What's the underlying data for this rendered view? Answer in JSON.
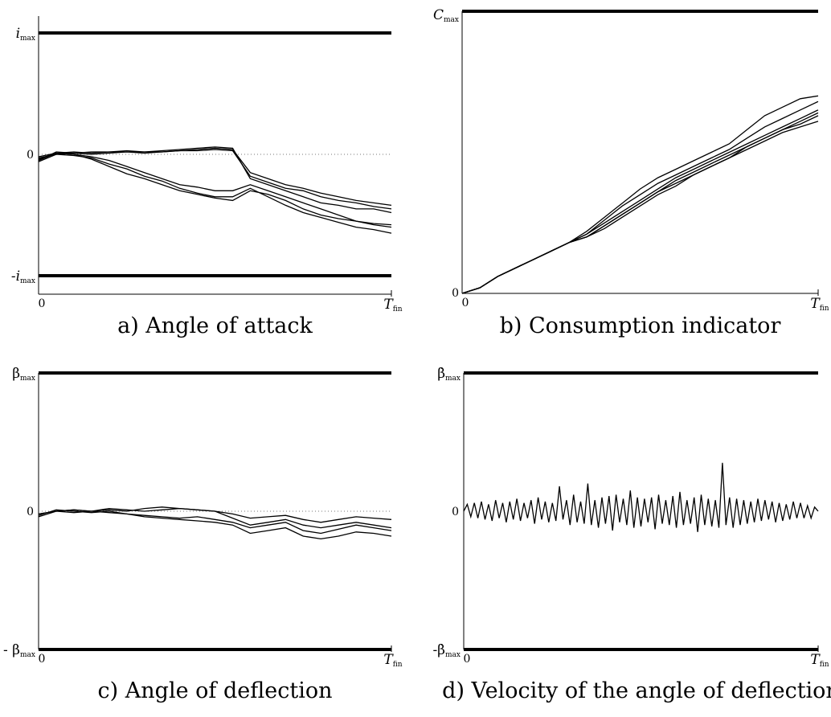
{
  "chart_data": [
    {
      "id": "a",
      "type": "line",
      "caption": "a) Angle of attack",
      "xlabel": "",
      "ylabel": "",
      "x_ticks": [
        "0",
        "T_fin"
      ],
      "y_ticks": [
        "i_max",
        "0",
        "-i_max"
      ],
      "ylim": [
        -1,
        1
      ],
      "xlim": [
        0,
        1
      ],
      "bounds": [
        1,
        -1
      ],
      "zero_line": true,
      "x": [
        0,
        0.05,
        0.1,
        0.15,
        0.2,
        0.25,
        0.3,
        0.35,
        0.4,
        0.45,
        0.5,
        0.55,
        0.6,
        0.65,
        0.7,
        0.75,
        0.8,
        0.85,
        0.9,
        0.95,
        1.0
      ],
      "series": [
        {
          "values": [
            -0.05,
            0.02,
            0.01,
            0.02,
            0.02,
            0.03,
            0.02,
            0.03,
            0.04,
            0.05,
            0.06,
            0.05,
            -0.2,
            -0.25,
            -0.3,
            -0.35,
            -0.4,
            -0.42,
            -0.45,
            -0.45,
            -0.48
          ]
        },
        {
          "values": [
            -0.04,
            0.01,
            0.0,
            -0.02,
            -0.05,
            -0.1,
            -0.15,
            -0.2,
            -0.25,
            -0.27,
            -0.3,
            -0.3,
            -0.25,
            -0.3,
            -0.35,
            -0.4,
            -0.45,
            -0.5,
            -0.55,
            -0.58,
            -0.6
          ]
        },
        {
          "values": [
            -0.03,
            0.0,
            -0.01,
            -0.03,
            -0.08,
            -0.12,
            -0.18,
            -0.22,
            -0.28,
            -0.32,
            -0.35,
            -0.35,
            -0.28,
            -0.35,
            -0.42,
            -0.48,
            -0.52,
            -0.56,
            -0.6,
            -0.62,
            -0.65
          ]
        },
        {
          "values": [
            -0.02,
            0.01,
            0.02,
            0.01,
            0.02,
            0.02,
            0.02,
            0.02,
            0.03,
            0.04,
            0.05,
            0.04,
            -0.15,
            -0.2,
            -0.25,
            -0.28,
            -0.32,
            -0.35,
            -0.38,
            -0.4,
            -0.42
          ]
        },
        {
          "values": [
            -0.06,
            0.0,
            0.01,
            0.0,
            0.01,
            0.02,
            0.01,
            0.02,
            0.03,
            0.03,
            0.04,
            0.03,
            -0.18,
            -0.23,
            -0.28,
            -0.3,
            -0.35,
            -0.38,
            -0.4,
            -0.43,
            -0.45
          ]
        },
        {
          "values": [
            -0.05,
            0.01,
            0.0,
            -0.04,
            -0.1,
            -0.16,
            -0.2,
            -0.25,
            -0.3,
            -0.33,
            -0.36,
            -0.38,
            -0.3,
            -0.33,
            -0.38,
            -0.45,
            -0.5,
            -0.53,
            -0.55,
            -0.57,
            -0.58
          ]
        }
      ]
    },
    {
      "id": "b",
      "type": "line",
      "caption": "b) Consumption indicator",
      "xlabel": "",
      "ylabel": "",
      "x_ticks": [
        "0",
        "T_fin"
      ],
      "y_ticks": [
        "C_max",
        "0"
      ],
      "ylim": [
        0,
        1
      ],
      "xlim": [
        0,
        1
      ],
      "bounds": [
        1
      ],
      "zero_line": false,
      "x": [
        0,
        0.05,
        0.1,
        0.15,
        0.2,
        0.25,
        0.3,
        0.35,
        0.4,
        0.45,
        0.5,
        0.55,
        0.6,
        0.65,
        0.7,
        0.75,
        0.8,
        0.85,
        0.9,
        0.95,
        1.0
      ],
      "series": [
        {
          "values": [
            0,
            0.02,
            0.06,
            0.09,
            0.12,
            0.15,
            0.18,
            0.2,
            0.24,
            0.28,
            0.32,
            0.36,
            0.4,
            0.43,
            0.46,
            0.49,
            0.52,
            0.55,
            0.58,
            0.6,
            0.63
          ]
        },
        {
          "values": [
            0,
            0.02,
            0.06,
            0.09,
            0.12,
            0.15,
            0.18,
            0.21,
            0.26,
            0.31,
            0.35,
            0.39,
            0.42,
            0.45,
            0.48,
            0.51,
            0.55,
            0.59,
            0.62,
            0.65,
            0.68
          ]
        },
        {
          "values": [
            0,
            0.02,
            0.06,
            0.09,
            0.12,
            0.15,
            0.18,
            0.2,
            0.23,
            0.27,
            0.31,
            0.35,
            0.38,
            0.42,
            0.45,
            0.48,
            0.51,
            0.54,
            0.57,
            0.59,
            0.61
          ]
        },
        {
          "values": [
            0,
            0.02,
            0.06,
            0.09,
            0.12,
            0.15,
            0.18,
            0.21,
            0.25,
            0.29,
            0.33,
            0.37,
            0.41,
            0.44,
            0.47,
            0.5,
            0.53,
            0.56,
            0.59,
            0.62,
            0.65
          ]
        },
        {
          "values": [
            0,
            0.02,
            0.06,
            0.09,
            0.12,
            0.15,
            0.18,
            0.2,
            0.24,
            0.28,
            0.32,
            0.36,
            0.39,
            0.42,
            0.45,
            0.48,
            0.52,
            0.55,
            0.58,
            0.61,
            0.64
          ]
        },
        {
          "values": [
            0,
            0.02,
            0.06,
            0.09,
            0.12,
            0.15,
            0.18,
            0.22,
            0.27,
            0.32,
            0.37,
            0.41,
            0.44,
            0.47,
            0.5,
            0.53,
            0.58,
            0.63,
            0.66,
            0.69,
            0.7
          ]
        }
      ]
    },
    {
      "id": "c",
      "type": "line",
      "caption": "c) Angle of deflection",
      "xlabel": "",
      "ylabel": "",
      "x_ticks": [
        "0",
        "T_fin"
      ],
      "y_ticks": [
        "β_max",
        "0",
        "- β_max"
      ],
      "ylim": [
        -1,
        1
      ],
      "xlim": [
        0,
        1
      ],
      "bounds": [
        1,
        -1
      ],
      "zero_line": true,
      "x": [
        0,
        0.05,
        0.1,
        0.15,
        0.2,
        0.25,
        0.3,
        0.35,
        0.4,
        0.45,
        0.5,
        0.55,
        0.6,
        0.65,
        0.7,
        0.75,
        0.8,
        0.85,
        0.9,
        0.95,
        1.0
      ],
      "series": [
        {
          "values": [
            -0.02,
            0.0,
            0.01,
            0.0,
            0.02,
            0.01,
            0.0,
            0.01,
            0.02,
            0.01,
            0.0,
            -0.05,
            -0.1,
            -0.08,
            -0.06,
            -0.1,
            -0.12,
            -0.1,
            -0.08,
            -0.1,
            -0.12
          ]
        },
        {
          "values": [
            -0.03,
            0.01,
            0.0,
            -0.01,
            0.0,
            -0.02,
            -0.03,
            -0.04,
            -0.05,
            -0.04,
            -0.06,
            -0.08,
            -0.12,
            -0.1,
            -0.08,
            -0.14,
            -0.16,
            -0.13,
            -0.1,
            -0.12,
            -0.14
          ]
        },
        {
          "values": [
            -0.02,
            0.0,
            -0.01,
            0.0,
            0.01,
            0.0,
            0.02,
            0.03,
            0.02,
            0.01,
            0.0,
            -0.02,
            -0.05,
            -0.04,
            -0.03,
            -0.06,
            -0.08,
            -0.06,
            -0.04,
            -0.05,
            -0.06
          ]
        },
        {
          "values": [
            -0.04,
            0.0,
            0.01,
            0.0,
            -0.01,
            -0.02,
            -0.04,
            -0.05,
            -0.06,
            -0.07,
            -0.08,
            -0.1,
            -0.16,
            -0.14,
            -0.12,
            -0.18,
            -0.2,
            -0.18,
            -0.15,
            -0.16,
            -0.18
          ]
        }
      ]
    },
    {
      "id": "d",
      "type": "line",
      "caption": "d) Velocity of the angle of deflection",
      "xlabel": "",
      "ylabel": "",
      "x_ticks": [
        "0",
        "T_fin"
      ],
      "y_ticks": [
        "β̇_max",
        "0",
        "-β̇_max"
      ],
      "ylim": [
        -1,
        1
      ],
      "xlim": [
        0,
        1
      ],
      "bounds": [
        1,
        -1
      ],
      "zero_line": false,
      "series": [
        {
          "values_note_free": true,
          "values": [
            0,
            0.05,
            -0.04,
            0.06,
            -0.05,
            0.07,
            -0.06,
            0.05,
            -0.07,
            0.08,
            -0.05,
            0.06,
            -0.08,
            0.07,
            -0.06,
            0.09,
            -0.07,
            0.06,
            -0.05,
            0.08,
            -0.09,
            0.1,
            -0.06,
            0.07,
            -0.08,
            0.06,
            -0.07,
            0.18,
            -0.06,
            0.08,
            -0.1,
            0.12,
            -0.08,
            0.07,
            -0.09,
            0.2,
            -0.1,
            0.08,
            -0.12,
            0.1,
            -0.09,
            0.11,
            -0.14,
            0.12,
            -0.08,
            0.09,
            -0.1,
            0.15,
            -0.12,
            0.1,
            -0.11,
            0.09,
            -0.08,
            0.1,
            -0.13,
            0.12,
            -0.09,
            0.08,
            -0.1,
            0.11,
            -0.12,
            0.14,
            -0.1,
            0.08,
            -0.09,
            0.1,
            -0.15,
            0.12,
            -0.1,
            0.09,
            -0.11,
            0.08,
            -0.12,
            0.35,
            -0.1,
            0.1,
            -0.12,
            0.09,
            -0.1,
            0.08,
            -0.09,
            0.07,
            -0.08,
            0.09,
            -0.07,
            0.08,
            -0.06,
            0.07,
            -0.08,
            0.06,
            -0.07,
            0.05,
            -0.06,
            0.07,
            -0.05,
            0.06,
            -0.05,
            0.04,
            -0.05,
            0.03,
            0
          ]
        }
      ]
    }
  ]
}
